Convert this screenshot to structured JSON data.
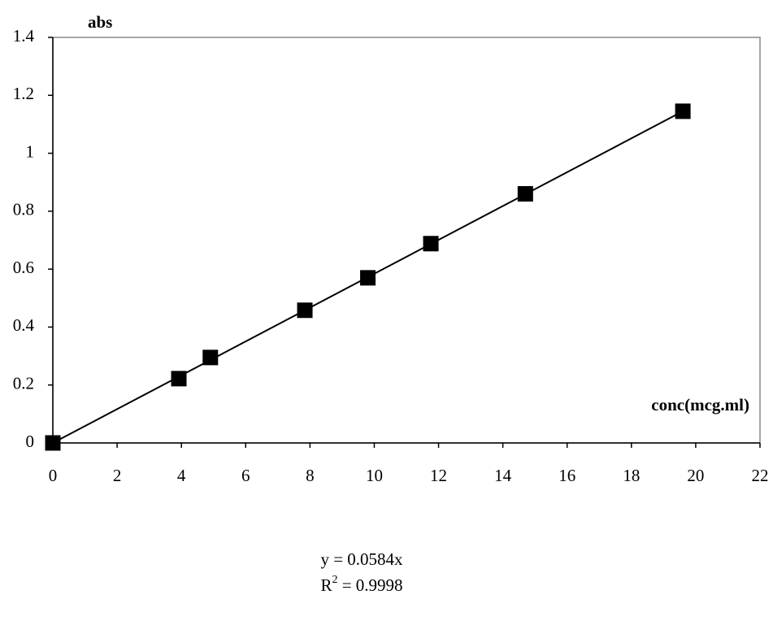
{
  "chart_data": {
    "type": "scatter",
    "x_label": "conc(mcg.ml)",
    "y_label": "abs",
    "x": [
      0,
      3.92,
      4.9,
      7.84,
      9.8,
      11.76,
      14.7,
      19.6
    ],
    "values": [
      0,
      0.222,
      0.295,
      0.458,
      0.57,
      0.688,
      0.86,
      1.145
    ],
    "color": "#000000",
    "trendline": {
      "x": [
        0,
        19.6
      ],
      "values": [
        0,
        1.145
      ],
      "color": "#000000"
    },
    "equation": "y = 0.0584x",
    "r_squared": {
      "base": "R",
      "sup": "2",
      "rest": " = 0.9998"
    },
    "xlim": [
      0,
      22
    ],
    "xticks": [
      0,
      2,
      4,
      6,
      8,
      10,
      12,
      14,
      16,
      18,
      20,
      22
    ],
    "ylim": [
      0,
      1.4
    ],
    "yticks": [
      0,
      0.2,
      0.4,
      0.6,
      0.8,
      1,
      1.2,
      1.4
    ],
    "grid": false
  }
}
